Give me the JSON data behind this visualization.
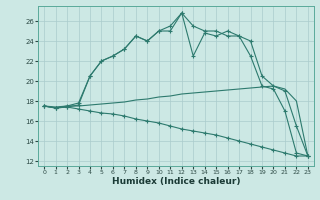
{
  "xlabel": "Humidex (Indice chaleur)",
  "bg_color": "#cce8e4",
  "line_color": "#2d7a6e",
  "grid_color": "#aacccc",
  "xlim": [
    -0.5,
    23.5
  ],
  "ylim": [
    11.5,
    27.5
  ],
  "yticks": [
    12,
    14,
    16,
    18,
    20,
    22,
    24,
    26
  ],
  "xticks": [
    0,
    1,
    2,
    3,
    4,
    5,
    6,
    7,
    8,
    9,
    10,
    11,
    12,
    13,
    14,
    15,
    16,
    17,
    18,
    19,
    20,
    21,
    22,
    23
  ],
  "humidex": [
    17.5,
    17.3,
    17.4,
    17.6,
    20.5,
    22.0,
    22.5,
    23.2,
    24.5,
    24.0,
    25.0,
    25.0,
    26.8,
    22.5,
    24.8,
    24.5,
    25.0,
    24.5,
    22.5,
    19.5,
    19.2,
    17.0,
    12.8,
    12.5
  ],
  "line_upper": [
    17.5,
    17.3,
    17.5,
    17.8,
    20.5,
    22.0,
    22.5,
    23.2,
    24.5,
    24.0,
    25.0,
    25.5,
    26.8,
    25.5,
    25.0,
    25.0,
    24.5,
    24.5,
    24.0,
    20.5,
    19.5,
    19.0,
    15.5,
    12.5
  ],
  "line_avg": [
    17.5,
    17.4,
    17.5,
    17.5,
    17.6,
    17.7,
    17.8,
    17.9,
    18.1,
    18.2,
    18.4,
    18.5,
    18.7,
    18.8,
    18.9,
    19.0,
    19.1,
    19.2,
    19.3,
    19.4,
    19.5,
    19.2,
    18.0,
    12.5
  ],
  "line_lower": [
    17.5,
    17.3,
    17.4,
    17.2,
    17.0,
    16.8,
    16.7,
    16.5,
    16.2,
    16.0,
    15.8,
    15.5,
    15.2,
    15.0,
    14.8,
    14.6,
    14.3,
    14.0,
    13.7,
    13.4,
    13.1,
    12.8,
    12.5,
    12.5
  ]
}
